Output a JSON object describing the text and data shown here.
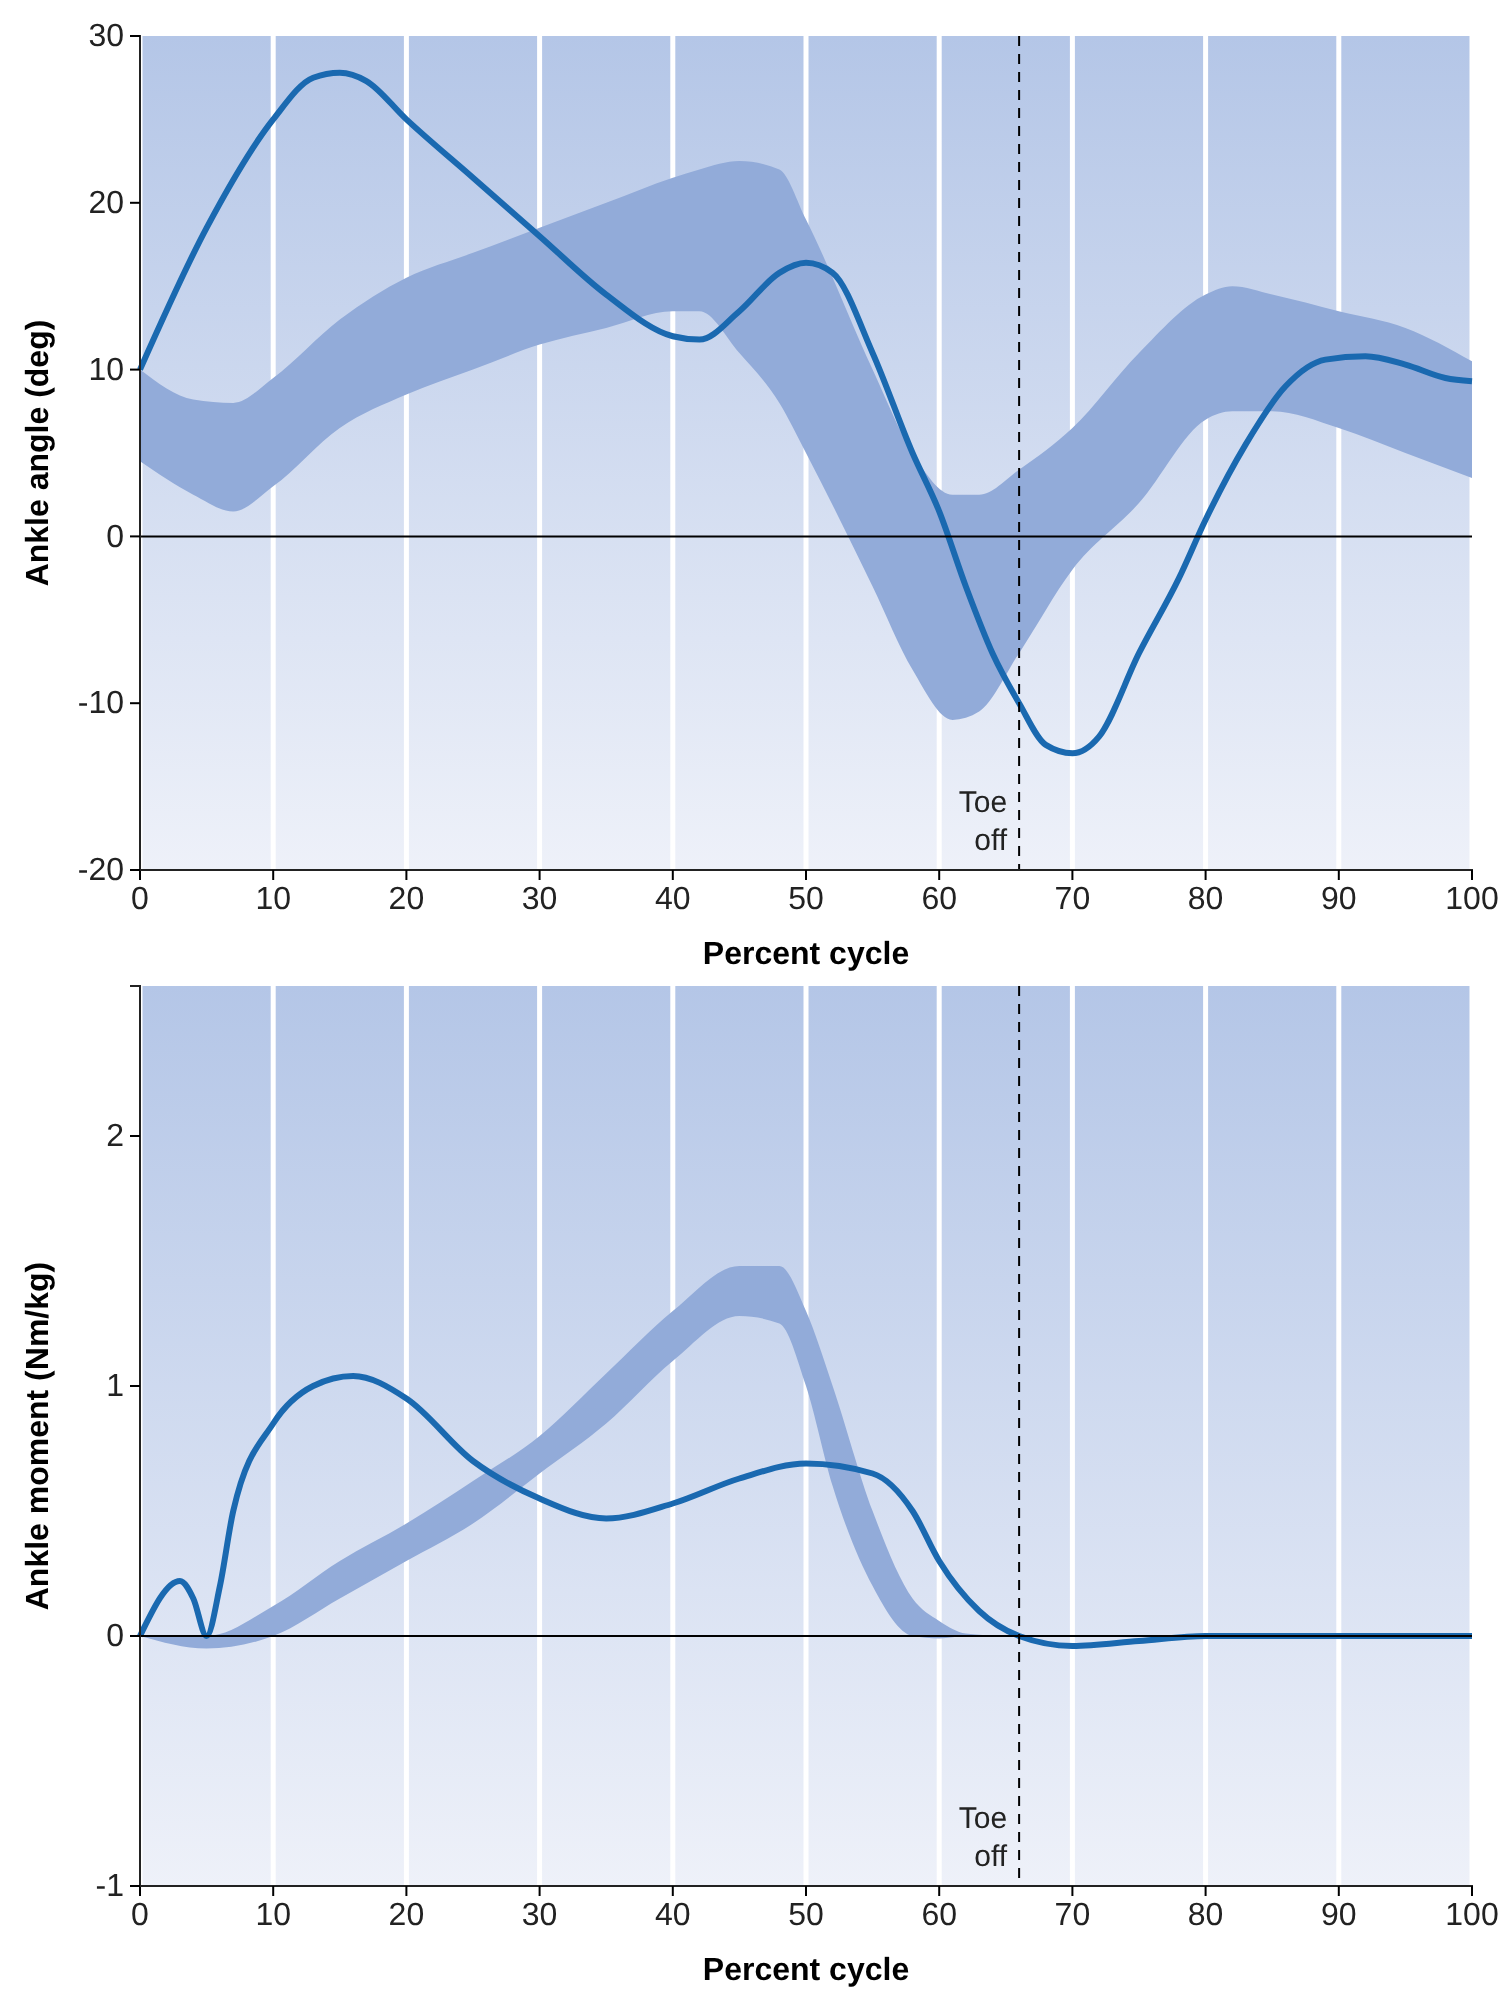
{
  "chart_data": [
    {
      "type": "line",
      "xlabel": "Percent cycle",
      "ylabel": "Ankle angle (deg)",
      "xlim": [
        0,
        100
      ],
      "ylim": [
        -20,
        30
      ],
      "xticks": [
        0,
        10,
        20,
        30,
        40,
        50,
        60,
        70,
        80,
        90,
        100
      ],
      "yticks": [
        -20,
        -10,
        0,
        10,
        20,
        30
      ],
      "grid": "x",
      "series": [
        {
          "color": "#92abd9",
          "x": [
            0,
            4,
            7,
            10,
            15,
            20,
            25,
            30,
            35,
            40,
            42,
            45,
            48,
            50,
            55,
            58,
            61,
            63,
            66,
            70,
            75,
            80,
            82,
            85,
            90,
            95,
            100
          ],
          "values": [
            null,
            null,
            null,
            null,
            null,
            null,
            null,
            null,
            null,
            null,
            null,
            null,
            null,
            null,
            null,
            null,
            null,
            null,
            null,
            null,
            null,
            null,
            null,
            null,
            null,
            null,
            null
          ],
          "upper": [
            10,
            8.2,
            8,
            9.5,
            13,
            15.5,
            17,
            18.5,
            20,
            21.5,
            22,
            22.5,
            22,
            19,
            10,
            5,
            2.5,
            2.5,
            4,
            6.5,
            11,
            14.5,
            15,
            14.5,
            13.5,
            12.5,
            10.5
          ],
          "lower": [
            4.5,
            2.5,
            1.5,
            3,
            6.5,
            8.5,
            10,
            11.5,
            12.5,
            13.5,
            13.5,
            11,
            8,
            5,
            -3,
            -8,
            -11,
            -10.5,
            -7,
            -2,
            2,
            7,
            7.5,
            7.5,
            6.5,
            5,
            3.5
          ]
        },
        {
          "color": "#1a69b0",
          "x": [
            0,
            5,
            10,
            13,
            15,
            17,
            20,
            25,
            30,
            35,
            40,
            42,
            45,
            48,
            50,
            52,
            55,
            58,
            60,
            62,
            64,
            66,
            68,
            70,
            72,
            75,
            78,
            80,
            83,
            86,
            89,
            92,
            95,
            98,
            100
          ],
          "values": [
            10,
            18.5,
            25,
            27.5,
            27.8,
            27.3,
            25,
            21.5,
            18,
            14.5,
            12,
            11.8,
            13.5,
            15.8,
            16.4,
            15.8,
            11,
            5,
            1.5,
            -3,
            -7,
            -10,
            -12.5,
            -13,
            -12,
            -7,
            -2.5,
            1,
            5.5,
            9,
            10.6,
            10.8,
            10.3,
            9.5,
            9.3
          ]
        }
      ],
      "ref_lines": [
        {
          "axis": "y",
          "value": 0,
          "color": "#000000",
          "line_style": "solid"
        },
        {
          "axis": "x",
          "value": 66,
          "label": "Toe off",
          "color": "#000000",
          "line_style": "dashed"
        }
      ]
    },
    {
      "type": "line",
      "xlabel": "Percent cycle",
      "ylabel": "Ankle moment (Nm/kg)",
      "xlim": [
        0,
        100
      ],
      "ylim": [
        -1,
        2.6
      ],
      "xticks": [
        0,
        10,
        20,
        30,
        40,
        50,
        60,
        70,
        80,
        90,
        100
      ],
      "yticks": [
        -1,
        0,
        1,
        2
      ],
      "grid": "x",
      "series": [
        {
          "color": "#92abd9",
          "x": [
            0,
            5,
            10,
            15,
            20,
            25,
            30,
            35,
            40,
            45,
            48,
            50,
            52,
            55,
            58,
            60,
            62,
            65
          ],
          "values": [
            null,
            null,
            null,
            null,
            null,
            null,
            null,
            null,
            null,
            null,
            null,
            null,
            null,
            null,
            null,
            null,
            null,
            null
          ],
          "upper": [
            0,
            0,
            0.12,
            0.3,
            0.45,
            0.62,
            0.8,
            1.05,
            1.3,
            1.48,
            1.48,
            1.3,
            1,
            0.5,
            0.15,
            0.06,
            0.01,
            0
          ],
          "lower": [
            0,
            -0.05,
            0,
            0.15,
            0.3,
            0.45,
            0.65,
            0.85,
            1.1,
            1.28,
            1.25,
            1,
            0.6,
            0.2,
            0,
            -0.01,
            0,
            0
          ]
        },
        {
          "color": "#1a69b0",
          "x": [
            0,
            3,
            4,
            5,
            6,
            7,
            10,
            13,
            16,
            20,
            25,
            30,
            35,
            40,
            45,
            50,
            55,
            58,
            60,
            63,
            66,
            70,
            75,
            80,
            90,
            100
          ],
          "values": [
            0,
            0.22,
            0.15,
            0,
            0.2,
            0.5,
            0.85,
            1,
            1.04,
            0.95,
            0.7,
            0.55,
            0.47,
            0.53,
            0.63,
            0.69,
            0.65,
            0.5,
            0.3,
            0.1,
            0,
            -0.04,
            -0.02,
            0,
            0,
            0
          ]
        }
      ],
      "ref_lines": [
        {
          "axis": "y",
          "value": 0,
          "color": "#000000",
          "line_style": "solid"
        },
        {
          "axis": "x",
          "value": 66,
          "label": "Toe off",
          "color": "#000000",
          "line_style": "dashed"
        }
      ]
    }
  ]
}
